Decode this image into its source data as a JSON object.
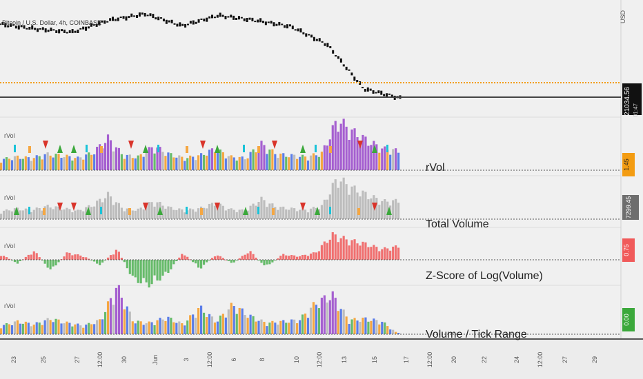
{
  "symbol_title": "Bitcoin / U.S. Dollar, 4h, COINBASE",
  "currency": "USD",
  "last_price": "21034.56",
  "countdown": "01:47",
  "panes": [
    {
      "tag": "rVol",
      "label": "rVol",
      "value": "1.45",
      "badge_color": "#f39c12"
    },
    {
      "tag": "rVol",
      "label": "Total Volume",
      "value": "7299.45",
      "badge_color": "#6e6e6e"
    },
    {
      "tag": "rVol",
      "label": "Z-Score of Log(Volume)",
      "value": "0.75",
      "badge_color": "#f05a5a"
    },
    {
      "tag": "rVol",
      "label": "Volume / Tick Range",
      "value": "0.00",
      "badge_color": "#3ba83b"
    }
  ],
  "x_ticks": [
    "23",
    "25",
    "27",
    "12:00",
    "30",
    "Jun",
    "3",
    "12:00",
    "6",
    "8",
    "10",
    "12:00",
    "13",
    "15",
    "17",
    "12:00",
    "20",
    "22",
    "24",
    "12:00",
    "27",
    "29"
  ],
  "colors": {
    "price": "#111111",
    "dotted_level": "#f39c12",
    "orange": "#f5a742",
    "blue": "#5b7de8",
    "green": "#66bb6a",
    "purple": "#a55fd0",
    "gray": "#bdbdbd",
    "red": "#f07070",
    "cyan": "#19c3d8",
    "marker_red": "#d9342b",
    "marker_green": "#3ba83b"
  },
  "chart_data": [
    {
      "type": "line",
      "title": "Bitcoin / U.S. Dollar, 4h, COINBASE",
      "ylabel": "USD",
      "x": [
        "23",
        "25",
        "27",
        "30",
        "Jun",
        "3",
        "6",
        "8",
        "10",
        "13",
        "15",
        "17"
      ],
      "series": [
        {
          "values": [
            30400,
            29800,
            29400,
            30900,
            31700,
            30200,
            31500,
            30900,
            30100,
            27800,
            22200,
            21034.56
          ]
        }
      ]
    },
    {
      "type": "bar",
      "title": "rVol",
      "series": [
        {
          "name": "rVol",
          "values": [
            0.8,
            1.0,
            0.9,
            1.2,
            1.1,
            0.9,
            1.3,
            2.4,
            1.1,
            1.0,
            1.8,
            1.2,
            0.9,
            1.1,
            1.6,
            1.0,
            0.9,
            2.0,
            1.2,
            1.1,
            1.0,
            1.3,
            3.8,
            2.9,
            2.2,
            1.6,
            1.45
          ]
        }
      ]
    },
    {
      "type": "bar",
      "title": "Total Volume",
      "series": [
        {
          "name": "Total Volume",
          "values": [
            3100,
            4200,
            3600,
            5200,
            4400,
            3300,
            5600,
            9800,
            4100,
            3800,
            7200,
            4600,
            3500,
            4300,
            6400,
            3900,
            3400,
            8100,
            4800,
            4200,
            3700,
            5300,
            16500,
            12400,
            9600,
            7100,
            7299.45
          ]
        }
      ]
    },
    {
      "type": "bar",
      "title": "Z-Score of Log(Volume)",
      "series": [
        {
          "name": "Z-Score",
          "values": [
            0.3,
            -0.2,
            0.5,
            -0.6,
            0.4,
            0.2,
            -0.3,
            0.6,
            -1.1,
            -1.4,
            -0.8,
            0.4,
            -0.5,
            0.3,
            -0.2,
            0.5,
            -0.4,
            0.3,
            0.2,
            0.4,
            1.4,
            1.1,
            0.9,
            0.6,
            0.75
          ]
        }
      ]
    },
    {
      "type": "bar",
      "title": "Volume / Tick Range",
      "series": [
        {
          "name": "Volume / Tick Range",
          "values": [
            0.6,
            0.9,
            0.7,
            1.1,
            0.8,
            0.6,
            1.0,
            3.4,
            0.9,
            0.8,
            1.2,
            0.7,
            1.9,
            0.9,
            2.1,
            1.3,
            0.8,
            0.9,
            1.0,
            2.2,
            2.8,
            1.0,
            1.1,
            0.9,
            0.0
          ]
        }
      ]
    }
  ]
}
